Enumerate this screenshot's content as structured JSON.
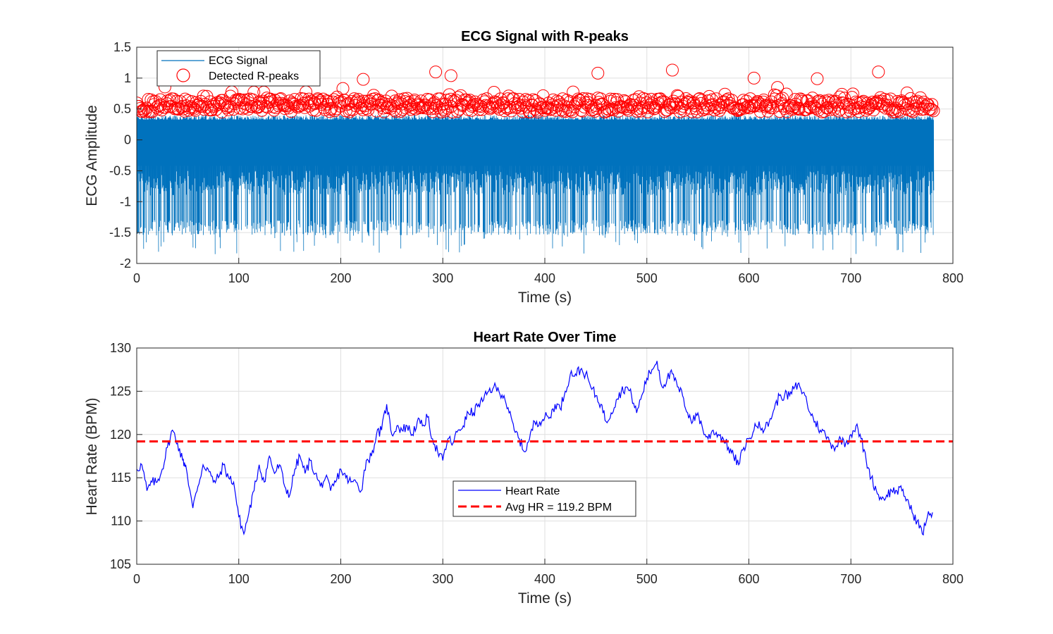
{
  "colors": {
    "ecg": "#0072BD",
    "peaks": "#FF0000",
    "heart_rate": "#0000FF",
    "avg_line": "#FF0000",
    "grid": "#DFDFDF",
    "axes": "#262626"
  },
  "chart_data": [
    {
      "type": "line",
      "title": "ECG Signal with R-peaks",
      "xlabel": "Time (s)",
      "ylabel": "ECG Amplitude",
      "xlim": [
        0,
        800
      ],
      "ylim": [
        -2,
        1.5
      ],
      "xticks": [
        "0",
        "100",
        "200",
        "300",
        "400",
        "500",
        "600",
        "700",
        "800"
      ],
      "yticks": [
        "-2",
        "-1.5",
        "-1",
        "-0.5",
        "0",
        "0.5",
        "1",
        "1.5"
      ],
      "grid": true,
      "legend_position": "top-left",
      "series": [
        {
          "name": "ECG Signal",
          "style": "line",
          "x_range": [
            0,
            781
          ],
          "description_values": {
            "baseline_low": -0.5,
            "baseline_high": 0.35,
            "typical_min": -1.3,
            "extreme_min": -1.85,
            "peak_typical": 0.5
          }
        },
        {
          "name": "Detected R-peaks",
          "style": "circle-markers",
          "x_range": [
            0,
            781
          ],
          "y_range": [
            0.4,
            1.12
          ],
          "notable_peaks": [
            {
              "x": 293,
              "y": 1.1
            },
            {
              "x": 308,
              "y": 1.04
            },
            {
              "x": 452,
              "y": 1.08
            },
            {
              "x": 525,
              "y": 1.13
            },
            {
              "x": 727,
              "y": 1.1
            },
            {
              "x": 222,
              "y": 0.98
            },
            {
              "x": 605,
              "y": 1.0
            },
            {
              "x": 667,
              "y": 0.99
            }
          ]
        }
      ]
    },
    {
      "type": "line",
      "title": "Heart Rate Over Time",
      "xlabel": "Time (s)",
      "ylabel": "Heart Rate (BPM)",
      "xlim": [
        0,
        800
      ],
      "ylim": [
        105,
        130
      ],
      "xticks": [
        "0",
        "100",
        "200",
        "300",
        "400",
        "500",
        "600",
        "700",
        "800"
      ],
      "yticks": [
        "105",
        "110",
        "115",
        "120",
        "125",
        "130"
      ],
      "grid": true,
      "legend_position": "center",
      "series": [
        {
          "name": "Heart Rate",
          "style": "line",
          "x": [
            0,
            5,
            10,
            15,
            20,
            25,
            30,
            35,
            40,
            45,
            48,
            55,
            60,
            65,
            70,
            75,
            80,
            85,
            90,
            95,
            100,
            105,
            110,
            115,
            120,
            125,
            130,
            135,
            140,
            145,
            150,
            155,
            160,
            165,
            170,
            175,
            180,
            185,
            190,
            195,
            200,
            205,
            210,
            215,
            220,
            225,
            230,
            235,
            240,
            245,
            250,
            255,
            260,
            265,
            270,
            275,
            280,
            285,
            290,
            295,
            300,
            305,
            310,
            315,
            320,
            325,
            330,
            335,
            340,
            345,
            350,
            355,
            360,
            365,
            370,
            375,
            380,
            385,
            390,
            395,
            400,
            405,
            410,
            415,
            420,
            425,
            430,
            435,
            440,
            445,
            450,
            455,
            460,
            465,
            470,
            475,
            480,
            485,
            490,
            495,
            500,
            505,
            510,
            515,
            520,
            525,
            530,
            535,
            540,
            545,
            550,
            555,
            560,
            565,
            570,
            575,
            580,
            585,
            590,
            595,
            600,
            605,
            610,
            615,
            620,
            625,
            630,
            635,
            640,
            645,
            650,
            655,
            660,
            665,
            670,
            675,
            680,
            685,
            690,
            695,
            700,
            705,
            710,
            715,
            720,
            725,
            730,
            735,
            740,
            745,
            750,
            755,
            760,
            765,
            770,
            775,
            780
          ],
          "y": [
            116,
            116.5,
            113.5,
            114.5,
            114.5,
            116,
            118.5,
            120.5,
            119,
            117,
            116.5,
            111.5,
            114,
            116.5,
            116,
            114.5,
            115,
            116.5,
            115,
            114.5,
            110.5,
            108.5,
            111,
            113.5,
            116.5,
            114.5,
            117.5,
            115.5,
            116.5,
            114,
            113,
            116,
            117.5,
            115.5,
            117,
            115.5,
            114,
            115,
            113.5,
            114.5,
            116,
            115,
            114.5,
            114.5,
            113.5,
            117,
            117.5,
            120,
            120.5,
            123.5,
            120,
            121,
            120.5,
            121,
            120,
            121.5,
            121,
            122,
            119.5,
            118,
            117,
            119.5,
            119,
            120.5,
            121,
            122.5,
            122.5,
            123.5,
            124,
            125,
            125.5,
            125,
            124.5,
            122.5,
            120.5,
            119.5,
            118,
            119.5,
            121.5,
            121.5,
            122,
            122,
            123.5,
            123,
            125,
            127,
            127,
            127.5,
            127,
            125.5,
            124.5,
            123.5,
            121.5,
            122.5,
            124,
            125,
            125.5,
            124.5,
            122.5,
            124.5,
            126.5,
            127.5,
            128.5,
            125.5,
            126.5,
            127,
            125.5,
            124.5,
            122.5,
            121.5,
            122.5,
            120.5,
            119.5,
            120.5,
            120,
            119.5,
            118.5,
            117.5,
            116.5,
            118.5,
            119.5,
            120.5,
            121.5,
            120.5,
            121.5,
            123,
            124.5,
            124.5,
            124.5,
            125.5,
            125.5,
            124.5,
            122.5,
            121.5,
            120.5,
            120,
            119,
            118.5,
            119.5,
            119,
            120,
            121,
            119.5,
            117,
            115,
            113.5,
            112.5,
            113,
            113.5,
            113.5,
            113.5,
            112.5,
            111,
            110,
            108.5,
            110.5,
            111
          ]
        },
        {
          "name": "Avg HR = 119.2 BPM",
          "style": "dashed",
          "constant_y": 119.2
        }
      ]
    }
  ]
}
